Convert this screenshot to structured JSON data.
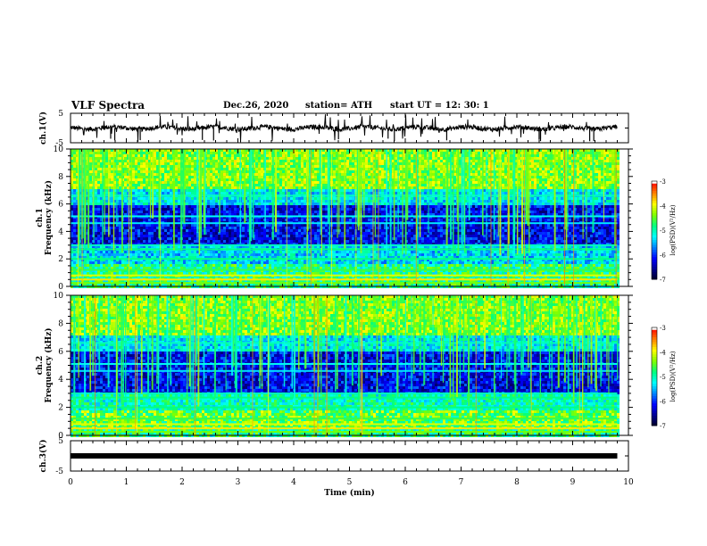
{
  "header": {
    "title": "VLF Spectra",
    "date": "Dec.26, 2020",
    "station": "station= ATH",
    "start": "start  UT =  12: 30: 1"
  },
  "chart_data": {
    "type": "heatmap",
    "xlabel": "Time (min)",
    "xlim": [
      0,
      10
    ],
    "x_ticks": [
      "0",
      "1",
      "2",
      "3",
      "4",
      "5",
      "6",
      "7",
      "8",
      "9",
      "10"
    ],
    "panels": [
      {
        "id": "ch1-waveform",
        "kind": "line",
        "ylabel": "ch.1(V)",
        "ylim": [
          -5,
          5
        ],
        "y_ticks": [
          "5",
          "-5"
        ],
        "baseline": 0,
        "data_end_min": 9.8
      },
      {
        "id": "ch1-spectrogram",
        "kind": "heatmap",
        "ylabel_line1": "ch.1",
        "ylabel_line2": "Frequency (kHz)",
        "ylim": [
          0,
          10
        ],
        "y_ticks": [
          "0",
          "2",
          "4",
          "6",
          "8",
          "10"
        ],
        "data_end_min": 9.8,
        "colorbar": {
          "label": "log(PSD)(V²/Hz)",
          "ticks": [
            "-3",
            "-4",
            "-5",
            "-6",
            "-7"
          ],
          "range": [
            -7,
            -3
          ]
        }
      },
      {
        "id": "ch2-spectrogram",
        "kind": "heatmap",
        "ylabel_line1": "ch.2",
        "ylabel_line2": "Frequency (kHz)",
        "ylim": [
          0,
          10
        ],
        "y_ticks": [
          "0",
          "2",
          "4",
          "6",
          "8",
          "10"
        ],
        "data_end_min": 9.8,
        "colorbar": {
          "label": "log(PSD)(V²/Hz)",
          "ticks": [
            "-3",
            "-4",
            "-5",
            "-6",
            "-7"
          ],
          "range": [
            -7,
            -3
          ]
        }
      },
      {
        "id": "ch3-waveform",
        "kind": "line",
        "ylabel": "ch.3(V)",
        "ylim": [
          -5,
          5
        ],
        "y_ticks": [
          "5",
          "-5"
        ],
        "baseline": 0,
        "data_end_min": 9.8
      }
    ]
  },
  "colors": {
    "colormap": [
      "#000020",
      "#00008b",
      "#0000ff",
      "#0080ff",
      "#00ffff",
      "#00ff80",
      "#80ff00",
      "#ffff00",
      "#ff8000",
      "#ff0000",
      "#ffffff"
    ]
  }
}
